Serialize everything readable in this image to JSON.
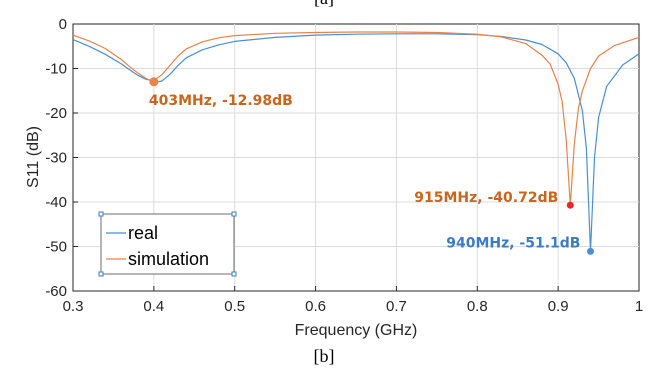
{
  "top_caption": "[a]",
  "bottom_caption": "[b]",
  "chart_data": {
    "type": "line",
    "xlabel": "Frequency (GHz)",
    "ylabel": "S11 (dB)",
    "xlim": [
      0.3,
      1.0
    ],
    "ylim": [
      -60,
      0
    ],
    "xticks": [
      "0.3",
      "0.4",
      "0.5",
      "0.6",
      "0.7",
      "0.8",
      "0.9",
      "1"
    ],
    "yticks": [
      "0",
      "-10",
      "-20",
      "-30",
      "-40",
      "-50",
      "-60"
    ],
    "grid": true,
    "legend_position": "bottom-left",
    "series": [
      {
        "name": "real",
        "color": "#4a8fd4",
        "x": [
          0.3,
          0.32,
          0.34,
          0.36,
          0.37,
          0.38,
          0.39,
          0.4,
          0.405,
          0.41,
          0.42,
          0.43,
          0.44,
          0.46,
          0.48,
          0.5,
          0.55,
          0.6,
          0.65,
          0.7,
          0.75,
          0.8,
          0.83,
          0.86,
          0.88,
          0.9,
          0.91,
          0.92,
          0.93,
          0.935,
          0.94,
          0.945,
          0.95,
          0.96,
          0.98,
          1.0
        ],
        "y": [
          -3.5,
          -5.0,
          -6.8,
          -9.0,
          -10.3,
          -11.5,
          -12.4,
          -12.8,
          -12.98,
          -12.8,
          -11.3,
          -9.3,
          -7.6,
          -5.8,
          -4.7,
          -3.9,
          -3.0,
          -2.5,
          -2.3,
          -2.2,
          -2.2,
          -2.4,
          -2.8,
          -3.6,
          -4.6,
          -6.7,
          -8.7,
          -12.2,
          -19.5,
          -28.0,
          -51.1,
          -30.0,
          -21.0,
          -14.0,
          -9.2,
          -6.7
        ]
      },
      {
        "name": "simulation",
        "color": "#e8834a",
        "x": [
          0.3,
          0.32,
          0.34,
          0.36,
          0.37,
          0.38,
          0.39,
          0.395,
          0.4,
          0.41,
          0.42,
          0.43,
          0.44,
          0.46,
          0.48,
          0.5,
          0.55,
          0.6,
          0.65,
          0.7,
          0.75,
          0.8,
          0.83,
          0.86,
          0.88,
          0.89,
          0.9,
          0.905,
          0.91,
          0.915,
          0.92,
          0.925,
          0.93,
          0.94,
          0.95,
          0.97,
          1.0
        ],
        "y": [
          -2.5,
          -3.8,
          -5.5,
          -8.0,
          -9.6,
          -11.0,
          -12.2,
          -12.6,
          -12.7,
          -11.4,
          -9.3,
          -7.2,
          -5.6,
          -4.0,
          -3.1,
          -2.6,
          -2.1,
          -1.9,
          -1.8,
          -1.8,
          -1.9,
          -2.3,
          -2.9,
          -4.4,
          -7.0,
          -9.0,
          -13.5,
          -17.5,
          -26.0,
          -40.72,
          -27.0,
          -19.0,
          -15.0,
          -10.0,
          -7.2,
          -4.8,
          -3.0
        ]
      }
    ],
    "markers": [
      {
        "x": 0.4,
        "y": -12.98,
        "color": "#e8834a",
        "label": "403MHz, -12.98dB",
        "label_color": "#c8651e"
      },
      {
        "x": 0.915,
        "y": -40.72,
        "color": "#e8262a",
        "label": "915MHz, -40.72dB",
        "label_color": "#c8651e"
      },
      {
        "x": 0.94,
        "y": -51.1,
        "color": "#4a8fd4",
        "label": "940MHz, -51.1dB",
        "label_color": "#3b7dc4"
      }
    ]
  }
}
